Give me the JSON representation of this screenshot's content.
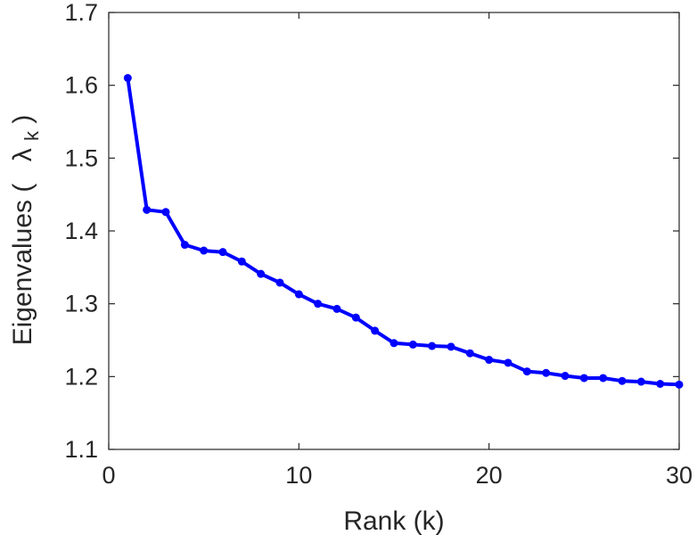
{
  "chart_data": {
    "type": "line",
    "xlabel": "Rank (k)",
    "ylabel": {
      "prefix": "Eigenvalues (",
      "symbol": "λ",
      "subscript": "k",
      "suffix": ")"
    },
    "xlim": [
      0,
      30
    ],
    "ylim": [
      1.1,
      1.7
    ],
    "xticks": [
      0,
      10,
      20,
      30
    ],
    "yticks": [
      1.1,
      1.2,
      1.3,
      1.4,
      1.5,
      1.6,
      1.7
    ],
    "grid": false,
    "line_color": "#0000ff",
    "axis_color": "#262626",
    "series": [
      {
        "x": [
          1,
          2,
          3,
          4,
          5,
          6,
          7,
          8,
          9,
          10,
          11,
          12,
          13,
          14,
          15,
          16,
          17,
          18,
          19,
          20,
          21,
          22,
          23,
          24,
          25,
          26,
          27,
          28,
          29,
          30
        ],
        "values": [
          1.61,
          1.429,
          1.426,
          1.381,
          1.373,
          1.371,
          1.358,
          1.341,
          1.329,
          1.313,
          1.3,
          1.293,
          1.281,
          1.263,
          1.246,
          1.244,
          1.242,
          1.241,
          1.232,
          1.223,
          1.219,
          1.207,
          1.205,
          1.201,
          1.198,
          1.198,
          1.194,
          1.193,
          1.19,
          1.189
        ]
      }
    ]
  }
}
